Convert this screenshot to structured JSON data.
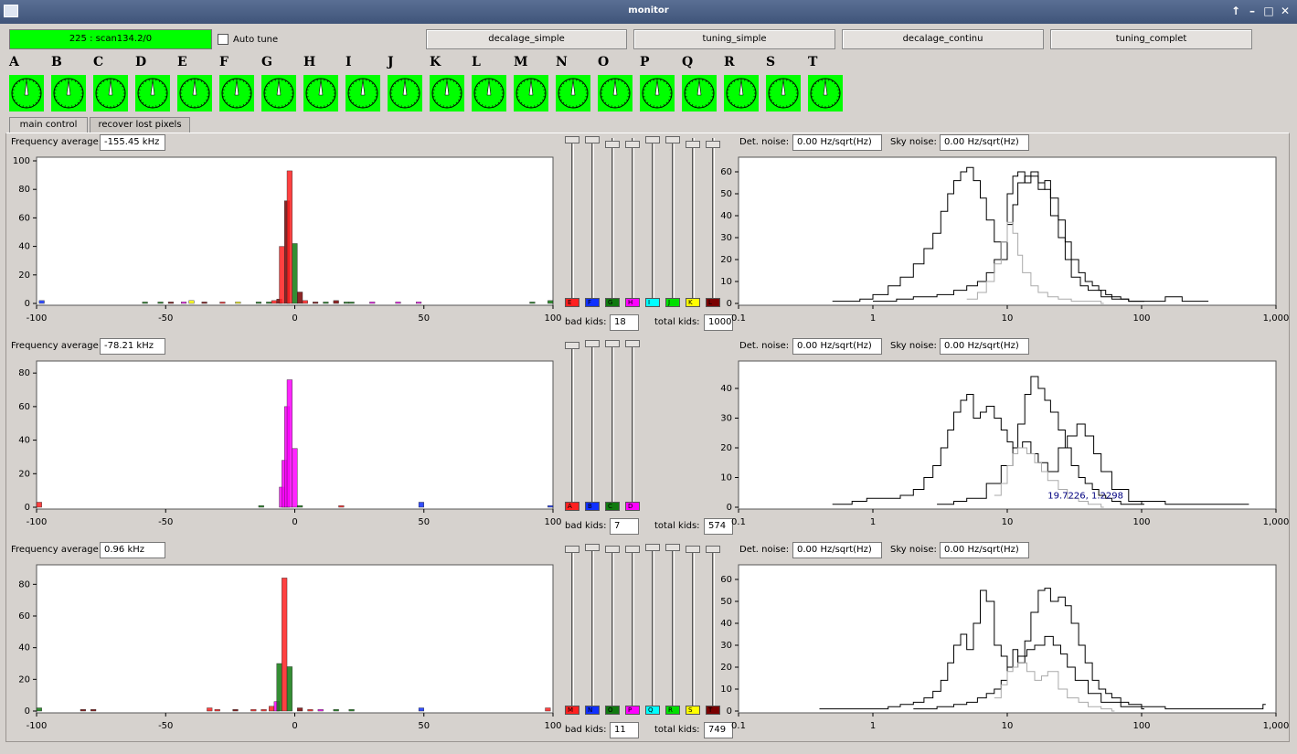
{
  "window": {
    "title": "monitor",
    "buttons": [
      "↑",
      "–",
      "□",
      "✕"
    ]
  },
  "scan_status": "225 : scan134.2/0",
  "auto_tune": {
    "label": "Auto tune",
    "checked": false
  },
  "toolbar": [
    "decalage_simple",
    "tuning_simple",
    "decalage_continu",
    "tuning_complet"
  ],
  "modules": [
    "A",
    "B",
    "C",
    "D",
    "E",
    "F",
    "G",
    "H",
    "I",
    "J",
    "K",
    "L",
    "M",
    "N",
    "O",
    "P",
    "Q",
    "R",
    "S",
    "T"
  ],
  "module_status_color": "#00ff00",
  "tabs": [
    {
      "label": "main control",
      "active": true
    },
    {
      "label": "recover lost pixels",
      "active": false
    }
  ],
  "labels": {
    "freq_avg": "Frequency average",
    "det_noise": "Det. noise:",
    "sky_noise": "Sky noise:",
    "bad_kids": "bad kids:",
    "total_kids": "total kids:"
  },
  "colors": {
    "A": "#ff2020",
    "B": "#1030ff",
    "C": "#107a10",
    "D": "#ff00ff",
    "E": "#ff2020",
    "F": "#1030ff",
    "G": "#107a10",
    "H": "#ff00ff",
    "I": "#00ffff",
    "J": "#00e000",
    "K": "#ffff00",
    "L": "#7a0000",
    "M": "#ff2020",
    "N": "#1030ff",
    "O": "#107a10",
    "P": "#ff00ff",
    "Q": "#00ffff",
    "R": "#00e000",
    "S": "#ffff00",
    "T": "#7a0000"
  },
  "groups": [
    {
      "freq_avg": "-155.45 kHz",
      "det_noise": "0.00 Hz/sqrt(Hz)",
      "sky_noise": "0.00 Hz/sqrt(Hz)",
      "bad_kids": "18",
      "total_kids": "1000",
      "channels": [
        "E",
        "F",
        "G",
        "H",
        "I",
        "J",
        "K",
        "L"
      ],
      "knobs": [
        0.0,
        0.0,
        0.05,
        0.05,
        0.0,
        0.0,
        0.05,
        0.05
      ]
    },
    {
      "freq_avg": "-78.21 kHz",
      "det_noise": "0.00 Hz/sqrt(Hz)",
      "sky_noise": "0.00 Hz/sqrt(Hz)",
      "bad_kids": "7",
      "total_kids": "574",
      "channels": [
        "A",
        "B",
        "C",
        "D"
      ],
      "knobs": [
        0.02,
        0.0,
        0.0,
        0.0
      ]
    },
    {
      "freq_avg": "0.96 kHz",
      "det_noise": "0.00 Hz/sqrt(Hz)",
      "sky_noise": "0.00 Hz/sqrt(Hz)",
      "bad_kids": "11",
      "total_kids": "749",
      "channels": [
        "M",
        "N",
        "O",
        "P",
        "Q",
        "R",
        "S",
        "T"
      ],
      "knobs": [
        0.02,
        0.0,
        0.02,
        0.02,
        0.0,
        0.0,
        0.02,
        0.02
      ]
    }
  ],
  "chart_data": [
    {
      "type": "bar",
      "name": "freq-hist-1",
      "xlim": [
        -100,
        100
      ],
      "ylim": [
        0,
        100
      ],
      "xticks": [
        -100,
        -50,
        0,
        50,
        100
      ],
      "yticks": [
        0,
        20,
        40,
        60,
        80,
        100
      ],
      "bars": [
        {
          "x": -98,
          "y": 2,
          "c": "B"
        },
        {
          "x": -58,
          "y": 1,
          "c": "G"
        },
        {
          "x": -52,
          "y": 1,
          "c": "G"
        },
        {
          "x": -48,
          "y": 1,
          "c": "L"
        },
        {
          "x": -43,
          "y": 1,
          "c": "H"
        },
        {
          "x": -40,
          "y": 2,
          "c": "K"
        },
        {
          "x": -35,
          "y": 1,
          "c": "L"
        },
        {
          "x": -28,
          "y": 1,
          "c": "E"
        },
        {
          "x": -22,
          "y": 1,
          "c": "K"
        },
        {
          "x": -14,
          "y": 1,
          "c": "G"
        },
        {
          "x": -10,
          "y": 1,
          "c": "G"
        },
        {
          "x": -8,
          "y": 2,
          "c": "E"
        },
        {
          "x": -6,
          "y": 3,
          "c": "L"
        },
        {
          "x": -5,
          "y": 40,
          "c": "E"
        },
        {
          "x": -3,
          "y": 72,
          "c": "L"
        },
        {
          "x": -2,
          "y": 93,
          "c": "E"
        },
        {
          "x": 0,
          "y": 42,
          "c": "G"
        },
        {
          "x": 2,
          "y": 8,
          "c": "L"
        },
        {
          "x": 4,
          "y": 2,
          "c": "E"
        },
        {
          "x": 8,
          "y": 1,
          "c": "L"
        },
        {
          "x": 12,
          "y": 1,
          "c": "G"
        },
        {
          "x": 16,
          "y": 2,
          "c": "L"
        },
        {
          "x": 20,
          "y": 1,
          "c": "G"
        },
        {
          "x": 22,
          "y": 1,
          "c": "G"
        },
        {
          "x": 30,
          "y": 1,
          "c": "H"
        },
        {
          "x": 40,
          "y": 1,
          "c": "H"
        },
        {
          "x": 48,
          "y": 1,
          "c": "H"
        },
        {
          "x": 92,
          "y": 1,
          "c": "G"
        },
        {
          "x": 99,
          "y": 2,
          "c": "G"
        }
      ]
    },
    {
      "type": "line",
      "name": "noise-hist-1",
      "xscale": "log",
      "xlim": [
        0.1,
        1000
      ],
      "ylim": [
        0,
        65
      ],
      "xticks": [
        "0.1",
        "1",
        "10",
        "100",
        "1,000"
      ],
      "yticks": [
        0,
        10,
        20,
        30,
        40,
        50,
        60
      ],
      "series": [
        {
          "color": "#000000",
          "x": [
            0.5,
            0.8,
            1,
            1.3,
            1.6,
            2,
            2.4,
            2.8,
            3.2,
            3.6,
            4,
            4.5,
            5,
            5.6,
            6.3,
            7,
            8,
            9,
            10,
            11,
            12,
            13.5,
            15,
            17,
            19,
            21,
            24,
            27,
            30,
            34,
            38,
            43,
            48,
            54,
            60,
            70,
            80,
            100,
            150,
            200,
            300
          ],
          "y": [
            1,
            2,
            4,
            8,
            12,
            18,
            25,
            32,
            42,
            50,
            56,
            60,
            62,
            56,
            48,
            38,
            28,
            20,
            50,
            58,
            60,
            55,
            58,
            52,
            56,
            48,
            38,
            28,
            20,
            14,
            10,
            8,
            6,
            4,
            3,
            2,
            1,
            1,
            3,
            1,
            1
          ]
        },
        {
          "color": "#000000",
          "x": [
            1,
            1.5,
            2,
            3,
            4,
            5,
            6,
            7,
            8,
            9,
            10,
            11,
            12,
            13.5,
            15,
            17,
            19,
            21,
            24,
            27,
            30,
            35,
            40,
            50,
            60,
            80,
            100
          ],
          "y": [
            1,
            2,
            3,
            4,
            6,
            8,
            10,
            14,
            20,
            28,
            36,
            45,
            55,
            58,
            60,
            55,
            52,
            40,
            30,
            20,
            12,
            8,
            6,
            3,
            2,
            1,
            1
          ]
        },
        {
          "color": "#aaaaaa",
          "x": [
            5,
            6,
            7,
            8,
            9,
            10,
            11,
            12,
            13,
            15,
            17,
            20,
            24,
            30,
            40,
            50
          ],
          "y": [
            2,
            5,
            10,
            18,
            28,
            37,
            32,
            22,
            14,
            8,
            5,
            3,
            2,
            1,
            1,
            0
          ]
        }
      ]
    },
    {
      "type": "bar",
      "name": "freq-hist-2",
      "xlim": [
        -100,
        100
      ],
      "ylim": [
        0,
        85
      ],
      "xticks": [
        -100,
        -50,
        0,
        50,
        100
      ],
      "yticks": [
        0,
        20,
        40,
        60,
        80
      ],
      "bars": [
        {
          "x": -99,
          "y": 3,
          "c": "A"
        },
        {
          "x": -13,
          "y": 1,
          "c": "C"
        },
        {
          "x": -5,
          "y": 12,
          "c": "D"
        },
        {
          "x": -4,
          "y": 28,
          "c": "D"
        },
        {
          "x": -3,
          "y": 60,
          "c": "D"
        },
        {
          "x": -2,
          "y": 76,
          "c": "D"
        },
        {
          "x": 0,
          "y": 35,
          "c": "D"
        },
        {
          "x": 2,
          "y": 1,
          "c": "C"
        },
        {
          "x": 18,
          "y": 1,
          "c": "A"
        },
        {
          "x": 49,
          "y": 3,
          "c": "B"
        },
        {
          "x": 99,
          "y": 1,
          "c": "B"
        }
      ]
    },
    {
      "type": "line",
      "name": "noise-hist-2",
      "xscale": "log",
      "xlim": [
        0.1,
        1000
      ],
      "ylim": [
        0,
        48
      ],
      "xticks": [
        "0.1",
        "1",
        "10",
        "100",
        "1,000"
      ],
      "yticks": [
        0,
        10,
        20,
        30,
        40
      ],
      "annotation": "19.7226, 1.2298",
      "series": [
        {
          "color": "#000000",
          "x": [
            0.5,
            0.7,
            0.9,
            1,
            1.3,
            1.6,
            2,
            2.4,
            2.8,
            3.2,
            3.6,
            4,
            4.5,
            5,
            5.6,
            6.3,
            7,
            8,
            9,
            10,
            11,
            12,
            13.5,
            15,
            17,
            19,
            21,
            24,
            27,
            30,
            34,
            38,
            43,
            48,
            54,
            60,
            70,
            80,
            100,
            150,
            200,
            300,
            600
          ],
          "y": [
            1,
            2,
            3,
            3,
            3,
            4,
            6,
            10,
            14,
            20,
            26,
            32,
            36,
            38,
            30,
            32,
            34,
            30,
            26,
            22,
            20,
            28,
            38,
            44,
            40,
            36,
            32,
            26,
            20,
            14,
            10,
            8,
            6,
            4,
            3,
            2,
            1,
            1,
            2,
            1,
            1,
            1,
            1
          ]
        },
        {
          "color": "#000000",
          "x": [
            3,
            4,
            5,
            7,
            9,
            11,
            13,
            15,
            17,
            20,
            24,
            28,
            33,
            38,
            44,
            50,
            60,
            80,
            100
          ],
          "y": [
            1,
            2,
            3,
            8,
            14,
            20,
            22,
            18,
            15,
            12,
            20,
            24,
            28,
            24,
            18,
            12,
            6,
            2,
            1
          ]
        },
        {
          "color": "#aaaaaa",
          "x": [
            8,
            9,
            10,
            11,
            12,
            14,
            16,
            18,
            20,
            24,
            28,
            34,
            40,
            50
          ],
          "y": [
            4,
            8,
            14,
            18,
            20,
            18,
            15,
            12,
            9,
            6,
            3,
            2,
            1,
            0
          ]
        }
      ]
    },
    {
      "type": "bar",
      "name": "freq-hist-3",
      "xlim": [
        -100,
        100
      ],
      "ylim": [
        0,
        90
      ],
      "xticks": [
        -100,
        -50,
        0,
        50,
        100
      ],
      "yticks": [
        0,
        20,
        40,
        60,
        80
      ],
      "bars": [
        {
          "x": -99,
          "y": 2,
          "c": "O"
        },
        {
          "x": -82,
          "y": 1,
          "c": "T"
        },
        {
          "x": -78,
          "y": 1,
          "c": "T"
        },
        {
          "x": -33,
          "y": 2,
          "c": "M"
        },
        {
          "x": -30,
          "y": 1,
          "c": "M"
        },
        {
          "x": -23,
          "y": 1,
          "c": "T"
        },
        {
          "x": -16,
          "y": 1,
          "c": "M"
        },
        {
          "x": -12,
          "y": 1,
          "c": "M"
        },
        {
          "x": -9,
          "y": 3,
          "c": "M"
        },
        {
          "x": -7,
          "y": 6,
          "c": "P"
        },
        {
          "x": -6,
          "y": 30,
          "c": "O"
        },
        {
          "x": -4,
          "y": 84,
          "c": "M"
        },
        {
          "x": -2,
          "y": 28,
          "c": "O"
        },
        {
          "x": 2,
          "y": 2,
          "c": "T"
        },
        {
          "x": 6,
          "y": 1,
          "c": "M"
        },
        {
          "x": 10,
          "y": 1,
          "c": "P"
        },
        {
          "x": 16,
          "y": 1,
          "c": "O"
        },
        {
          "x": 22,
          "y": 1,
          "c": "O"
        },
        {
          "x": 49,
          "y": 2,
          "c": "N"
        },
        {
          "x": 98,
          "y": 2,
          "c": "M"
        }
      ]
    },
    {
      "type": "line",
      "name": "noise-hist-3",
      "xscale": "log",
      "xlim": [
        0.1,
        1000
      ],
      "ylim": [
        0,
        65
      ],
      "xticks": [
        "0.1",
        "1",
        "10",
        "100",
        "1,000"
      ],
      "yticks": [
        0,
        10,
        20,
        30,
        40,
        50,
        60
      ],
      "series": [
        {
          "color": "#000000",
          "x": [
            0.4,
            0.7,
            1,
            1.3,
            1.6,
            2,
            2.4,
            2.8,
            3.2,
            3.6,
            4,
            4.5,
            5,
            5.6,
            6.3,
            7,
            8,
            9,
            10,
            11,
            12,
            13.5,
            15,
            17,
            19,
            21,
            24,
            27,
            30,
            34,
            38,
            43,
            48,
            54,
            60,
            70,
            80,
            100,
            150,
            200,
            300,
            800
          ],
          "y": [
            1,
            1,
            1,
            2,
            3,
            4,
            6,
            9,
            14,
            22,
            30,
            35,
            28,
            40,
            55,
            50,
            30,
            25,
            20,
            28,
            22,
            32,
            45,
            55,
            56,
            50,
            52,
            48,
            40,
            30,
            22,
            14,
            10,
            8,
            6,
            4,
            3,
            2,
            1,
            1,
            1,
            3
          ]
        },
        {
          "color": "#000000",
          "x": [
            2,
            3,
            4,
            5,
            6,
            7,
            8,
            9,
            10,
            12,
            14,
            16,
            19,
            22,
            25,
            28,
            32,
            40,
            50,
            70,
            100
          ],
          "y": [
            1,
            2,
            3,
            4,
            6,
            8,
            10,
            14,
            20,
            25,
            28,
            30,
            34,
            30,
            26,
            20,
            14,
            8,
            4,
            2,
            1
          ]
        },
        {
          "color": "#aaaaaa",
          "x": [
            8,
            9,
            10,
            11,
            12,
            14,
            16,
            18,
            20,
            24,
            28,
            34,
            40,
            50,
            60
          ],
          "y": [
            6,
            12,
            18,
            20,
            22,
            18,
            14,
            16,
            18,
            10,
            6,
            4,
            2,
            1,
            0
          ]
        }
      ]
    }
  ]
}
